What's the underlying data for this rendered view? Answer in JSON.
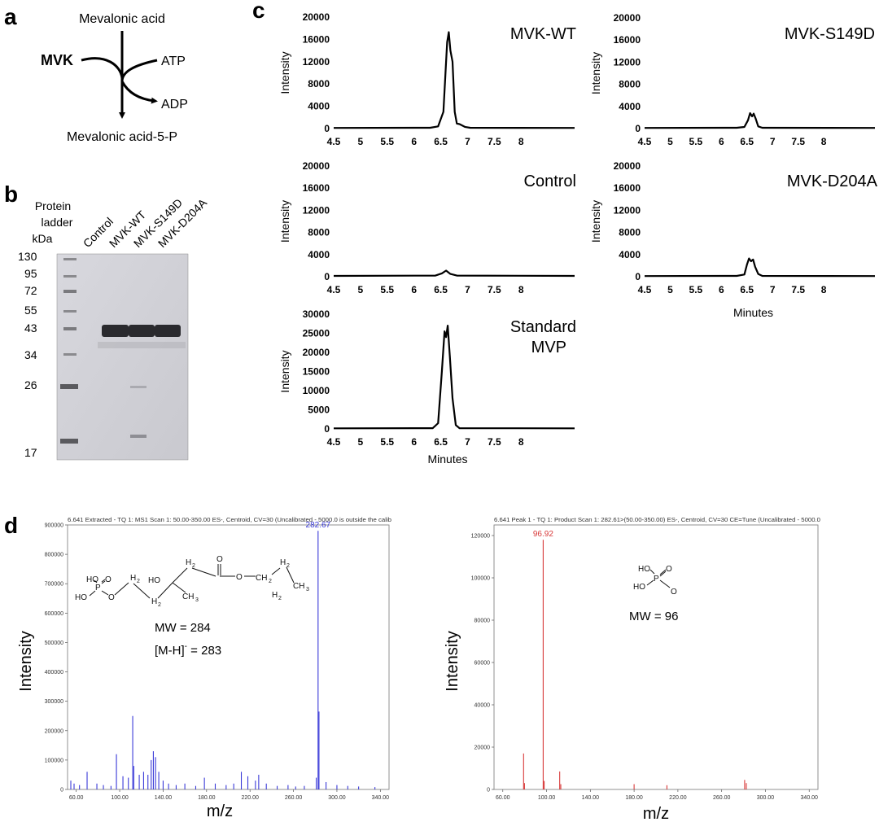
{
  "panels": {
    "a": "a",
    "b": "b",
    "c": "c",
    "d": "d"
  },
  "pathway": {
    "substrate": "Mevalonic acid",
    "enzyme": "MVK",
    "cofactor_in": "ATP",
    "cofactor_out": "ADP",
    "product": "Mevalonic acid-5-P"
  },
  "gel": {
    "ladder_title": [
      "Protein",
      "ladder",
      "kDa"
    ],
    "lanes": [
      "Control",
      "MVK-WT",
      "MVK-S149D",
      "MVK-D204A"
    ],
    "markers_kDa": [
      "130",
      "95",
      "72",
      "55",
      "43",
      "34",
      "26",
      "17"
    ]
  },
  "chart_data": [
    {
      "type": "line",
      "id": "mvk-wt",
      "title": "MVK-WT",
      "ylabel": "Intensity",
      "xlabel": "",
      "xlim": [
        4.5,
        9.0
      ],
      "ylim": [
        0,
        20000
      ],
      "yticks": [
        "0",
        "4000",
        "8000",
        "12000",
        "16000",
        "20000"
      ],
      "xticks": [
        "4.5",
        "5",
        "5.5",
        "6",
        "6.5",
        "7",
        "7.5",
        "8"
      ],
      "x": [
        4.5,
        6.3,
        6.45,
        6.55,
        6.6,
        6.62,
        6.65,
        6.68,
        6.72,
        6.76,
        6.8,
        6.85,
        6.95,
        7.05,
        9.0
      ],
      "y": [
        120,
        150,
        400,
        3000,
        12000,
        15500,
        17300,
        14000,
        12000,
        3000,
        900,
        800,
        300,
        150,
        120
      ]
    },
    {
      "type": "line",
      "id": "mvk-s149d",
      "title": "MVK-S149D",
      "ylabel": "Intensity",
      "xlabel": "",
      "xlim": [
        4.5,
        9.0
      ],
      "ylim": [
        0,
        20000
      ],
      "yticks": [
        "0",
        "4000",
        "8000",
        "12000",
        "16000",
        "20000"
      ],
      "xticks": [
        "4.5",
        "5",
        "5.5",
        "6",
        "6.5",
        "7",
        "7.5",
        "8"
      ],
      "x": [
        4.5,
        6.3,
        6.45,
        6.52,
        6.56,
        6.6,
        6.63,
        6.67,
        6.72,
        6.8,
        9.0
      ],
      "y": [
        120,
        150,
        300,
        1500,
        2800,
        2200,
        2700,
        1800,
        400,
        150,
        120
      ]
    },
    {
      "type": "line",
      "id": "control",
      "title": "Control",
      "ylabel": "Intensity",
      "xlabel": "",
      "xlim": [
        4.5,
        9.0
      ],
      "ylim": [
        0,
        20000
      ],
      "yticks": [
        "0",
        "4000",
        "8000",
        "12000",
        "16000",
        "20000"
      ],
      "xticks": [
        "4.5",
        "5",
        "5.5",
        "6",
        "6.5",
        "7",
        "7.5",
        "8"
      ],
      "x": [
        4.5,
        6.4,
        6.52,
        6.6,
        6.68,
        6.8,
        9.0
      ],
      "y": [
        150,
        200,
        600,
        1100,
        500,
        200,
        150
      ]
    },
    {
      "type": "line",
      "id": "mvk-d204a",
      "title": "MVK-D204A",
      "ylabel": "Intensity",
      "xlabel": "Minutes",
      "xlim": [
        4.5,
        9.0
      ],
      "ylim": [
        0,
        20000
      ],
      "yticks": [
        "0",
        "4000",
        "8000",
        "12000",
        "16000",
        "20000"
      ],
      "xticks": [
        "4.5",
        "5",
        "5.5",
        "6",
        "6.5",
        "7",
        "7.5",
        "8"
      ],
      "x": [
        4.5,
        6.3,
        6.45,
        6.5,
        6.54,
        6.58,
        6.62,
        6.66,
        6.72,
        6.8,
        9.0
      ],
      "y": [
        120,
        150,
        400,
        2200,
        3300,
        2800,
        3100,
        1800,
        500,
        150,
        120
      ]
    },
    {
      "type": "line",
      "id": "standard-mvp",
      "title": "Standard MVP",
      "ylabel": "Intensity",
      "xlabel": "Minutes",
      "xlim": [
        4.5,
        9.0
      ],
      "ylim": [
        0,
        30000
      ],
      "yticks": [
        "0",
        "5000",
        "10000",
        "15000",
        "20000",
        "25000",
        "30000"
      ],
      "xticks": [
        "4.5",
        "5",
        "5.5",
        "6",
        "6.5",
        "7",
        "7.5",
        "8"
      ],
      "x": [
        4.5,
        6.35,
        6.45,
        6.52,
        6.57,
        6.6,
        6.63,
        6.67,
        6.72,
        6.78,
        6.85,
        9.0
      ],
      "y": [
        150,
        200,
        1500,
        15000,
        25500,
        24000,
        27000,
        19000,
        8000,
        1000,
        200,
        150
      ]
    },
    {
      "type": "bar",
      "id": "ms1",
      "color": "#3a3ad8",
      "header": "6.641 Extracted - TQ 1: MS1 Scan 1: 50.00-350.00 ES-, Centroid, CV=30 (Uncalibrated - 5000.0 is outside the calib",
      "ylabel": "Intensity",
      "xlabel": "m/z",
      "xlim": [
        52,
        348
      ],
      "ylim": [
        0,
        900000
      ],
      "yticks": [
        "0",
        "100000",
        "200000",
        "300000",
        "400000",
        "500000",
        "600000",
        "700000",
        "800000",
        "900000"
      ],
      "xticks": [
        "60.00",
        "100.00",
        "140.00",
        "180.00",
        "220.00",
        "260.00",
        "300.00",
        "340.00"
      ],
      "xtick_values": [
        60,
        100,
        140,
        180,
        220,
        260,
        300,
        340
      ],
      "peak_label": "282.67",
      "peaks_mz": [
        55,
        58,
        63,
        70,
        79,
        85,
        92,
        97,
        103,
        108,
        112,
        113,
        118,
        122,
        126,
        129,
        131,
        133,
        136,
        140,
        145,
        152,
        160,
        170,
        178,
        188,
        198,
        205,
        212,
        218,
        225,
        228,
        235,
        245,
        255,
        262,
        270,
        281,
        282.67,
        283.5,
        290,
        300,
        310,
        320,
        335
      ],
      "peaks_int": [
        30000,
        20000,
        15000,
        60000,
        20000,
        15000,
        12000,
        120000,
        45000,
        40000,
        250000,
        80000,
        50000,
        60000,
        50000,
        100000,
        130000,
        110000,
        60000,
        30000,
        20000,
        15000,
        20000,
        12000,
        40000,
        20000,
        15000,
        20000,
        60000,
        45000,
        30000,
        50000,
        20000,
        12000,
        15000,
        10000,
        12000,
        40000,
        880000,
        265000,
        25000,
        15000,
        12000,
        10000,
        8000
      ]
    },
    {
      "type": "bar",
      "id": "ms2",
      "color": "#d83a3a",
      "header": "6.641 Peak 1 - TQ 1: Product Scan 1: 282.61>(50.00-350.00) ES-, Centroid, CV=30 CE=Tune (Uncalibrated - 5000.0",
      "ylabel": "Intensity",
      "xlabel": "m/z",
      "xlim": [
        52,
        348
      ],
      "ylim": [
        0,
        125000
      ],
      "yticks": [
        "0",
        "20000",
        "40000",
        "60000",
        "80000",
        "100000",
        "120000"
      ],
      "xticks": [
        "60.00",
        "100.00",
        "140.00",
        "180.00",
        "220.00",
        "260.00",
        "300.00",
        "340.00"
      ],
      "xtick_values": [
        60,
        100,
        140,
        180,
        220,
        260,
        300,
        340
      ],
      "peak_label": "96.92",
      "peaks_mz": [
        79,
        79.8,
        96.92,
        97.8,
        112,
        113,
        180,
        210,
        281,
        282.5
      ],
      "peaks_int": [
        17000,
        3000,
        118000,
        4000,
        8500,
        2500,
        2500,
        2000,
        4500,
        3000
      ]
    }
  ],
  "structures": {
    "ms1": {
      "atoms": {
        "po_top": "HO",
        "p": "P",
        "ho_left": "HO",
        "o_bridge": "O",
        "o_dbl": "O",
        "h2_1": "H",
        "h2_1s": "2",
        "h2_2": "H",
        "h2_2s": "2",
        "h2_3": "H",
        "h2_3s": "2",
        "ho2": "HO",
        "ch3": "CH",
        "ch3s": "3",
        "o_carbonyl": "O",
        "o_ester": "O",
        "ch2a": "CH",
        "ch2as": "2",
        "h2_4": "H",
        "h2_4s": "2",
        "h2_5": "H",
        "h2_5s": "2",
        "ch3b": "CH",
        "ch3bs": "3"
      },
      "mw": "MW = 284",
      "ion_pre": "[M-H]",
      "ion_sup": "-",
      "ion_post": " = 283"
    },
    "ms2": {
      "atoms": {
        "ho1": "HO",
        "p": "P",
        "ho2": "HO",
        "o1": "O",
        "o2": "O"
      },
      "mw": "MW = 96"
    }
  }
}
